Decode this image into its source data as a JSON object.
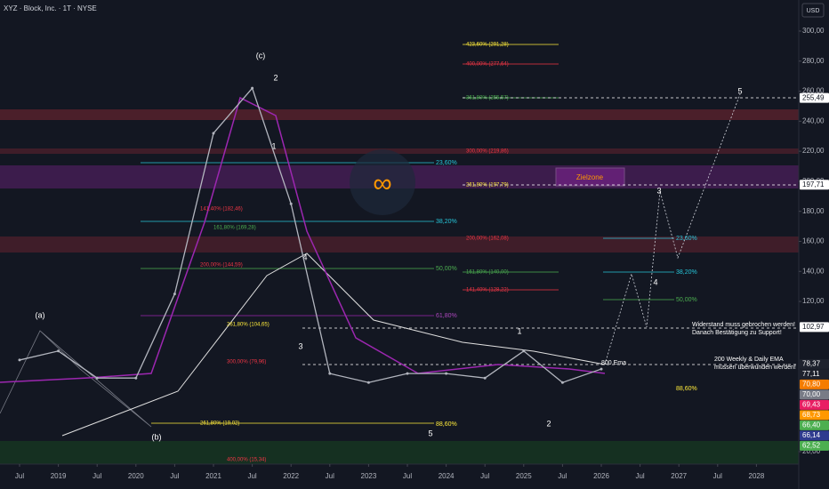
{
  "header": {
    "symbol": "XYZ · Block, Inc. · 1T · NYSE",
    "currency": "USD"
  },
  "chart_data": {
    "type": "line",
    "categories": [
      "Jul",
      "2019",
      "Jul",
      "2020",
      "Jul",
      "2021",
      "Jul",
      "2022",
      "Jul",
      "2023",
      "Jul",
      "2024",
      "Jul",
      "2025",
      "Jul",
      "2026",
      "Jul",
      "2027",
      "Jul",
      "2028"
    ],
    "values": [
      81,
      87,
      69,
      69,
      125,
      232,
      262,
      185,
      72,
      66,
      72,
      72,
      69,
      87,
      66,
      75,
      null,
      null,
      null,
      null
    ],
    "color": "#b2b5be",
    "ylim": [
      11.7,
      320.7
    ],
    "yticks": [
      {
        "value": 300,
        "label": "300,00"
      },
      {
        "value": 280,
        "label": "280,00"
      },
      {
        "value": 260,
        "label": "260,00"
      },
      {
        "value": 240,
        "label": "240,00"
      },
      {
        "value": 220,
        "label": "220,00"
      },
      {
        "value": 200,
        "label": "200,00"
      },
      {
        "value": 180,
        "label": "180,00"
      },
      {
        "value": 160,
        "label": "160,00"
      },
      {
        "value": 140,
        "label": "140,00"
      },
      {
        "value": 120,
        "label": "120,00"
      },
      {
        "value": 20,
        "label": "20,00"
      }
    ],
    "price_tags": [
      {
        "value": 255.49,
        "label": "255,49",
        "color": "#ffffff"
      },
      {
        "value": 197.71,
        "label": "197,71",
        "color": "#ffffff"
      },
      {
        "value": 102.97,
        "label": "102,97",
        "color": "#ffffff"
      },
      {
        "value": 78.37,
        "label": "78,37",
        "color": "#1e222d"
      },
      {
        "value": 77.11,
        "label": "77,11",
        "color": "#1e222d"
      },
      {
        "value": 70.8,
        "label": "70,80",
        "color": "#f57c00"
      },
      {
        "value": 70.0,
        "label": "70,00",
        "color": "#787b86"
      },
      {
        "value": 69.43,
        "label": "69,43",
        "color": "#e91e63"
      },
      {
        "value": 68.73,
        "label": "68,73",
        "color": "#ff9800"
      },
      {
        "value": 66.4,
        "label": "66,40",
        "color": "#4caf50"
      },
      {
        "value": 66.14,
        "label": "66,14",
        "color": "#2f3b8f"
      },
      {
        "value": 62.52,
        "label": "62,52",
        "color": "#4caf50"
      }
    ]
  },
  "annotations": [
    "423,60% (291,28)",
    "400,00% (277,64)",
    "361,80% (255,57)",
    "300,00% (219,86)",
    "261,80% (197,79)",
    "200,00% (162,08)",
    "161,80% (140,00)",
    "141,40% (128,22)",
    "23,60%",
    "38,20%",
    "50,00%",
    "23,60%",
    "38,20%",
    "50,00%",
    "61,80%",
    "141,40% (182,46)",
    "161,80% (169,28)",
    "200,00% (144,59)",
    "261,80% (104,65)",
    "300,00% (79,96)",
    "261,80% (19,02)",
    "400,00% (15,34)",
    "88,60%",
    "88,60%",
    "Zielzone",
    "Widerstand muss gebrochen werden!",
    "Danach Bestätigung zu Support!",
    "200 Weekly & Daily EMA",
    "müssen überwunden werden!",
    "800 Ema"
  ],
  "waves": [
    "(a)",
    "(b)",
    "(c)",
    "2",
    "1",
    "3",
    "4",
    "5",
    "1",
    "2",
    "3",
    "4",
    "5"
  ]
}
